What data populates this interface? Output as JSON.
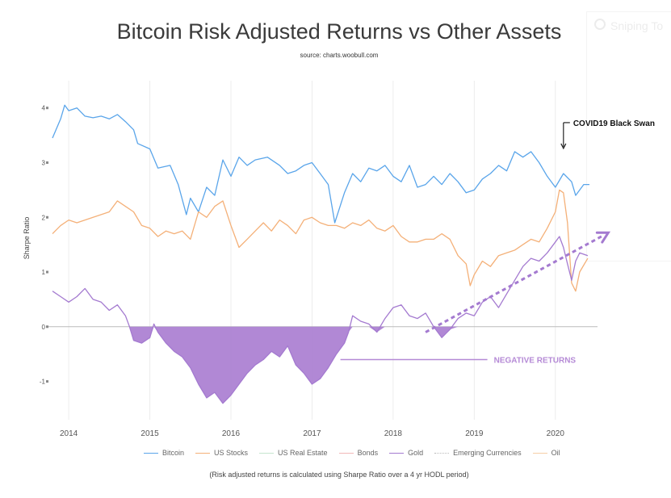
{
  "ghost_panel": {
    "text": "Sniping To"
  },
  "chart_data": {
    "type": "line",
    "title": "Bitcoin Risk Adjusted Returns vs Other Assets",
    "subtitle": "source: charts.woobull.com",
    "ylabel": "Sharpe Ratio",
    "xlabel": "",
    "x_ticks": [
      "2014",
      "2015",
      "2016",
      "2017",
      "2018",
      "2019",
      "2020"
    ],
    "y_ticks": [
      "4",
      "3",
      "2",
      "1",
      "0",
      "-1"
    ],
    "ylim": [
      -1.7,
      4.35
    ],
    "xlim": [
      2013.75,
      2020.52
    ],
    "grid": "vertical lines at year marks",
    "series": [
      {
        "name": "Bitcoin",
        "color": "#5aa5ea",
        "points": [
          [
            2013.8,
            3.45
          ],
          [
            2013.9,
            3.8
          ],
          [
            2013.95,
            4.05
          ],
          [
            2014.0,
            3.95
          ],
          [
            2014.1,
            4.0
          ],
          [
            2014.2,
            3.85
          ],
          [
            2014.3,
            3.82
          ],
          [
            2014.4,
            3.85
          ],
          [
            2014.5,
            3.8
          ],
          [
            2014.6,
            3.88
          ],
          [
            2014.7,
            3.75
          ],
          [
            2014.8,
            3.6
          ],
          [
            2014.85,
            3.35
          ],
          [
            2015.0,
            3.25
          ],
          [
            2015.1,
            2.9
          ],
          [
            2015.25,
            2.95
          ],
          [
            2015.35,
            2.6
          ],
          [
            2015.45,
            2.05
          ],
          [
            2015.5,
            2.35
          ],
          [
            2015.6,
            2.1
          ],
          [
            2015.7,
            2.55
          ],
          [
            2015.8,
            2.4
          ],
          [
            2015.9,
            3.05
          ],
          [
            2016.0,
            2.75
          ],
          [
            2016.1,
            3.1
          ],
          [
            2016.2,
            2.95
          ],
          [
            2016.3,
            3.05
          ],
          [
            2016.45,
            3.1
          ],
          [
            2016.6,
            2.95
          ],
          [
            2016.7,
            2.8
          ],
          [
            2016.8,
            2.85
          ],
          [
            2016.9,
            2.95
          ],
          [
            2017.0,
            3.0
          ],
          [
            2017.1,
            2.8
          ],
          [
            2017.2,
            2.6
          ],
          [
            2017.28,
            1.9
          ],
          [
            2017.4,
            2.45
          ],
          [
            2017.5,
            2.8
          ],
          [
            2017.6,
            2.65
          ],
          [
            2017.7,
            2.9
          ],
          [
            2017.8,
            2.85
          ],
          [
            2017.9,
            2.95
          ],
          [
            2018.0,
            2.75
          ],
          [
            2018.1,
            2.65
          ],
          [
            2018.2,
            2.95
          ],
          [
            2018.3,
            2.55
          ],
          [
            2018.4,
            2.6
          ],
          [
            2018.5,
            2.75
          ],
          [
            2018.6,
            2.6
          ],
          [
            2018.7,
            2.8
          ],
          [
            2018.8,
            2.65
          ],
          [
            2018.9,
            2.45
          ],
          [
            2019.0,
            2.5
          ],
          [
            2019.1,
            2.7
          ],
          [
            2019.2,
            2.8
          ],
          [
            2019.3,
            2.95
          ],
          [
            2019.4,
            2.85
          ],
          [
            2019.5,
            3.2
          ],
          [
            2019.6,
            3.1
          ],
          [
            2019.7,
            3.2
          ],
          [
            2019.8,
            3.0
          ],
          [
            2019.9,
            2.75
          ],
          [
            2020.0,
            2.55
          ],
          [
            2020.1,
            2.8
          ],
          [
            2020.2,
            2.65
          ],
          [
            2020.25,
            2.4
          ],
          [
            2020.35,
            2.6
          ],
          [
            2020.42,
            2.6
          ]
        ]
      },
      {
        "name": "US Stocks",
        "color": "#f4b078",
        "points": [
          [
            2013.8,
            1.7
          ],
          [
            2013.9,
            1.85
          ],
          [
            2014.0,
            1.95
          ],
          [
            2014.1,
            1.9
          ],
          [
            2014.2,
            1.95
          ],
          [
            2014.3,
            2.0
          ],
          [
            2014.4,
            2.05
          ],
          [
            2014.5,
            2.1
          ],
          [
            2014.6,
            2.3
          ],
          [
            2014.7,
            2.2
          ],
          [
            2014.8,
            2.1
          ],
          [
            2014.9,
            1.85
          ],
          [
            2015.0,
            1.8
          ],
          [
            2015.1,
            1.65
          ],
          [
            2015.2,
            1.75
          ],
          [
            2015.3,
            1.7
          ],
          [
            2015.4,
            1.75
          ],
          [
            2015.5,
            1.6
          ],
          [
            2015.6,
            2.1
          ],
          [
            2015.7,
            2.0
          ],
          [
            2015.8,
            2.2
          ],
          [
            2015.9,
            2.3
          ],
          [
            2016.0,
            1.85
          ],
          [
            2016.1,
            1.45
          ],
          [
            2016.2,
            1.6
          ],
          [
            2016.3,
            1.75
          ],
          [
            2016.4,
            1.9
          ],
          [
            2016.5,
            1.75
          ],
          [
            2016.6,
            1.95
          ],
          [
            2016.7,
            1.85
          ],
          [
            2016.8,
            1.7
          ],
          [
            2016.9,
            1.95
          ],
          [
            2017.0,
            2.0
          ],
          [
            2017.1,
            1.9
          ],
          [
            2017.2,
            1.85
          ],
          [
            2017.3,
            1.85
          ],
          [
            2017.4,
            1.8
          ],
          [
            2017.5,
            1.9
          ],
          [
            2017.6,
            1.85
          ],
          [
            2017.7,
            1.95
          ],
          [
            2017.8,
            1.8
          ],
          [
            2017.9,
            1.75
          ],
          [
            2018.0,
            1.85
          ],
          [
            2018.1,
            1.65
          ],
          [
            2018.2,
            1.55
          ],
          [
            2018.3,
            1.55
          ],
          [
            2018.4,
            1.6
          ],
          [
            2018.5,
            1.6
          ],
          [
            2018.6,
            1.7
          ],
          [
            2018.7,
            1.6
          ],
          [
            2018.8,
            1.3
          ],
          [
            2018.9,
            1.15
          ],
          [
            2018.95,
            0.75
          ],
          [
            2019.0,
            0.95
          ],
          [
            2019.1,
            1.2
          ],
          [
            2019.2,
            1.1
          ],
          [
            2019.3,
            1.3
          ],
          [
            2019.4,
            1.35
          ],
          [
            2019.5,
            1.4
          ],
          [
            2019.6,
            1.5
          ],
          [
            2019.7,
            1.6
          ],
          [
            2019.8,
            1.55
          ],
          [
            2019.9,
            1.8
          ],
          [
            2020.0,
            2.1
          ],
          [
            2020.05,
            2.5
          ],
          [
            2020.1,
            2.45
          ],
          [
            2020.15,
            1.9
          ],
          [
            2020.2,
            0.8
          ],
          [
            2020.25,
            0.65
          ],
          [
            2020.3,
            1.0
          ],
          [
            2020.4,
            1.25
          ]
        ]
      },
      {
        "name": "US Real Estate",
        "color": "#c5e5cf",
        "points": []
      },
      {
        "name": "Bonds",
        "color": "#f2b8b8",
        "points": []
      },
      {
        "name": "Gold",
        "color": "#a47ad0",
        "points": [
          [
            2013.8,
            0.65
          ],
          [
            2013.9,
            0.55
          ],
          [
            2014.0,
            0.45
          ],
          [
            2014.1,
            0.55
          ],
          [
            2014.2,
            0.7
          ],
          [
            2014.3,
            0.5
          ],
          [
            2014.4,
            0.45
          ],
          [
            2014.5,
            0.3
          ],
          [
            2014.6,
            0.4
          ],
          [
            2014.7,
            0.2
          ],
          [
            2014.75,
            0.0
          ],
          [
            2014.8,
            -0.25
          ],
          [
            2014.9,
            -0.3
          ],
          [
            2015.0,
            -0.2
          ],
          [
            2015.05,
            0.05
          ],
          [
            2015.1,
            -0.1
          ],
          [
            2015.2,
            -0.3
          ],
          [
            2015.3,
            -0.45
          ],
          [
            2015.4,
            -0.55
          ],
          [
            2015.5,
            -0.75
          ],
          [
            2015.6,
            -1.05
          ],
          [
            2015.7,
            -1.3
          ],
          [
            2015.8,
            -1.2
          ],
          [
            2015.9,
            -1.4
          ],
          [
            2016.0,
            -1.25
          ],
          [
            2016.1,
            -1.05
          ],
          [
            2016.2,
            -0.85
          ],
          [
            2016.3,
            -0.7
          ],
          [
            2016.4,
            -0.6
          ],
          [
            2016.5,
            -0.45
          ],
          [
            2016.6,
            -0.55
          ],
          [
            2016.7,
            -0.35
          ],
          [
            2016.8,
            -0.7
          ],
          [
            2016.9,
            -0.85
          ],
          [
            2017.0,
            -1.05
          ],
          [
            2017.1,
            -0.95
          ],
          [
            2017.2,
            -0.75
          ],
          [
            2017.3,
            -0.5
          ],
          [
            2017.4,
            -0.3
          ],
          [
            2017.45,
            -0.1
          ],
          [
            2017.5,
            0.2
          ],
          [
            2017.6,
            0.1
          ],
          [
            2017.7,
            0.05
          ],
          [
            2017.8,
            -0.1
          ],
          [
            2017.9,
            0.15
          ],
          [
            2018.0,
            0.35
          ],
          [
            2018.1,
            0.4
          ],
          [
            2018.2,
            0.2
          ],
          [
            2018.3,
            0.15
          ],
          [
            2018.4,
            0.25
          ],
          [
            2018.5,
            0.0
          ],
          [
            2018.6,
            -0.2
          ],
          [
            2018.7,
            -0.05
          ],
          [
            2018.8,
            0.15
          ],
          [
            2018.9,
            0.25
          ],
          [
            2019.0,
            0.2
          ],
          [
            2019.1,
            0.45
          ],
          [
            2019.2,
            0.55
          ],
          [
            2019.3,
            0.35
          ],
          [
            2019.4,
            0.6
          ],
          [
            2019.5,
            0.85
          ],
          [
            2019.6,
            1.1
          ],
          [
            2019.7,
            1.25
          ],
          [
            2019.8,
            1.2
          ],
          [
            2019.9,
            1.35
          ],
          [
            2020.0,
            1.55
          ],
          [
            2020.05,
            1.65
          ],
          [
            2020.1,
            1.45
          ],
          [
            2020.15,
            1.15
          ],
          [
            2020.2,
            0.85
          ],
          [
            2020.25,
            1.2
          ],
          [
            2020.3,
            1.35
          ],
          [
            2020.4,
            1.3
          ]
        ]
      },
      {
        "name": "Emerging Currencies",
        "color": "#bbbbbb",
        "points": []
      },
      {
        "name": "Oil",
        "color": "#f6cfa6",
        "points": []
      }
    ],
    "annotations": [
      {
        "text": "COVID19 Black Swan",
        "x": 2020.1,
        "y": 3.2,
        "kind": "arrow-down"
      },
      {
        "text": "NEGATIVE RETURNS",
        "x": 2017.35,
        "y": -0.6,
        "kind": "line-label",
        "color": "#b58ad6"
      },
      {
        "text": "",
        "kind": "dashed-trend-arrow",
        "from": [
          2018.4,
          -0.1
        ],
        "to": [
          2020.7,
          1.75
        ],
        "color": "#a47ad0"
      }
    ]
  },
  "footnote": "(Risk adjusted returns is calculated using Sharpe Ratio over a 4 yr HODL period)"
}
